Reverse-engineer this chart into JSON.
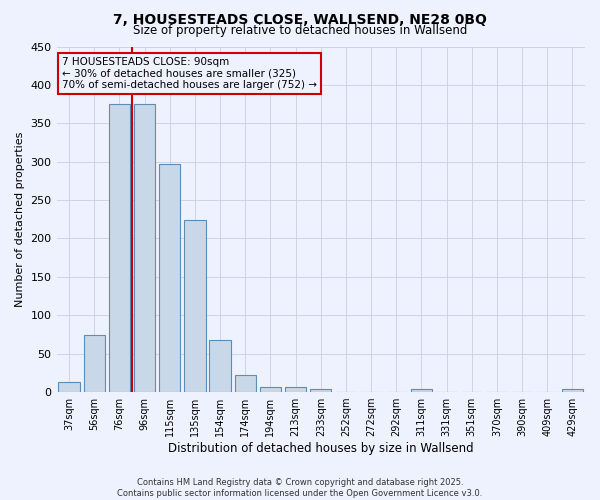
{
  "title_line1": "7, HOUSESTEADS CLOSE, WALLSEND, NE28 0BQ",
  "title_line2": "Size of property relative to detached houses in Wallsend",
  "xlabel": "Distribution of detached houses by size in Wallsend",
  "ylabel": "Number of detached properties",
  "bar_labels": [
    "37sqm",
    "56sqm",
    "76sqm",
    "96sqm",
    "115sqm",
    "135sqm",
    "154sqm",
    "174sqm",
    "194sqm",
    "213sqm",
    "233sqm",
    "252sqm",
    "272sqm",
    "292sqm",
    "311sqm",
    "331sqm",
    "351sqm",
    "370sqm",
    "390sqm",
    "409sqm",
    "429sqm"
  ],
  "bar_values": [
    13,
    74,
    375,
    375,
    297,
    224,
    68,
    22,
    7,
    6,
    4,
    0,
    0,
    0,
    4,
    0,
    0,
    0,
    0,
    0,
    4
  ],
  "bar_color": "#c8d8e8",
  "bar_edgecolor": "#5b8db8",
  "vline_x": 2.5,
  "vline_color": "#cc0000",
  "ylim": [
    0,
    450
  ],
  "yticks": [
    0,
    50,
    100,
    150,
    200,
    250,
    300,
    350,
    400,
    450
  ],
  "annotation_title": "7 HOUSESTEADS CLOSE: 90sqm",
  "annotation_line2": "← 30% of detached houses are smaller (325)",
  "annotation_line3": "70% of semi-detached houses are larger (752) →",
  "footer_line1": "Contains HM Land Registry data © Crown copyright and database right 2025.",
  "footer_line2": "Contains public sector information licensed under the Open Government Licence v3.0.",
  "bg_color": "#eef2ff",
  "grid_color": "#c8d0e0"
}
